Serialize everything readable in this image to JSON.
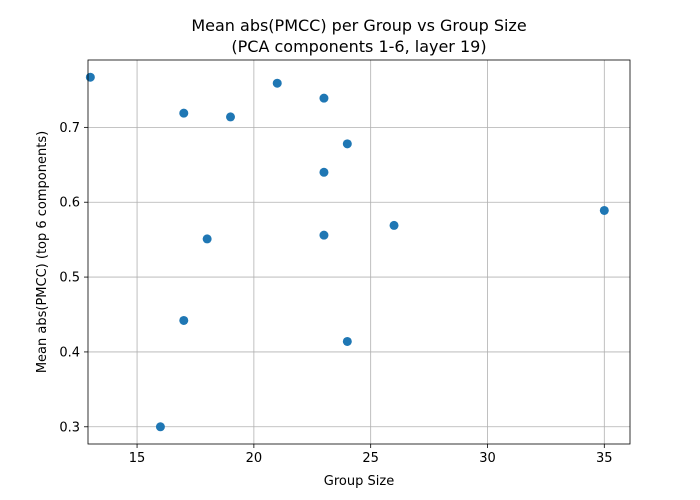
{
  "chart_data": {
    "type": "scatter",
    "title": "Mean abs(PMCC) per Group vs Group Size",
    "subtitle": "(PCA components 1-6, layer 19)",
    "xlabel": "Group Size",
    "ylabel": "Mean abs(PMCC) (top 6 components)",
    "xlim": [
      12.9,
      36.1
    ],
    "ylim": [
      0.277,
      0.79
    ],
    "xticks": [
      15,
      20,
      25,
      30,
      35
    ],
    "yticks": [
      0.3,
      0.4,
      0.5,
      0.6,
      0.7
    ],
    "grid": true,
    "marker_color": "#1f77b4",
    "points": [
      {
        "x": 13,
        "y": 0.767
      },
      {
        "x": 16,
        "y": 0.3
      },
      {
        "x": 17,
        "y": 0.719
      },
      {
        "x": 17,
        "y": 0.442
      },
      {
        "x": 18,
        "y": 0.551
      },
      {
        "x": 19,
        "y": 0.714
      },
      {
        "x": 21,
        "y": 0.759
      },
      {
        "x": 23,
        "y": 0.739
      },
      {
        "x": 23,
        "y": 0.64
      },
      {
        "x": 23,
        "y": 0.556
      },
      {
        "x": 24,
        "y": 0.678
      },
      {
        "x": 24,
        "y": 0.414
      },
      {
        "x": 26,
        "y": 0.569
      },
      {
        "x": 35,
        "y": 0.589
      }
    ]
  }
}
